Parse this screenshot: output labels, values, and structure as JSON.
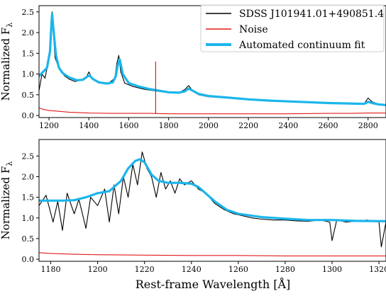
{
  "figure": {
    "xlabel": "Rest-frame Wavelength [Å]"
  },
  "legend": {
    "position": "top-right",
    "entries": [
      {
        "label": "SDSS J101941.01+490851.4",
        "color": "#000000"
      },
      {
        "label": "Noise",
        "color": "#e31a1c"
      },
      {
        "label": "Automated continuum fit",
        "color": "#1bb5ec"
      }
    ]
  },
  "colors": {
    "spectrum": "#000000",
    "noise": "#e31a1c",
    "fit": "#1bb5ec"
  },
  "chart_data": [
    {
      "type": "line",
      "ylabel": "Normalized F",
      "ylabel_subscript": "λ",
      "xlim": [
        1150,
        2890
      ],
      "ylim": [
        -0.05,
        2.65
      ],
      "xticks": [
        1200,
        1400,
        1600,
        1800,
        2000,
        2200,
        2400,
        2600,
        2800
      ],
      "yticks": [
        0.0,
        0.5,
        1.0,
        1.5,
        2.0,
        2.5
      ],
      "ytick_labels": [
        "0.0",
        "0.5",
        "1.0",
        "1.5",
        "2.0",
        "2.5"
      ],
      "series": [
        {
          "name": "SDSS J101941.01+490851.4",
          "x": [
            1150,
            1165,
            1180,
            1195,
            1205,
            1212,
            1216,
            1222,
            1230,
            1245,
            1260,
            1280,
            1300,
            1330,
            1360,
            1390,
            1400,
            1410,
            1430,
            1460,
            1500,
            1530,
            1540,
            1550,
            1560,
            1580,
            1620,
            1680,
            1750,
            1800,
            1850,
            1880,
            1900,
            1920,
            1950,
            2000,
            2100,
            2200,
            2300,
            2400,
            2500,
            2600,
            2700,
            2780,
            2800,
            2820,
            2850,
            2890
          ],
          "y": [
            0.6,
            1.0,
            0.9,
            1.25,
            1.55,
            2.2,
            2.5,
            2.0,
            1.4,
            1.2,
            1.05,
            0.95,
            0.88,
            0.82,
            0.85,
            0.95,
            1.05,
            0.95,
            0.85,
            0.8,
            0.78,
            0.9,
            1.25,
            1.45,
            1.05,
            0.78,
            0.7,
            0.63,
            0.58,
            0.55,
            0.55,
            0.62,
            0.72,
            0.6,
            0.5,
            0.45,
            0.42,
            0.38,
            0.36,
            0.34,
            0.32,
            0.3,
            0.3,
            0.28,
            0.42,
            0.33,
            0.28,
            0.26
          ]
        },
        {
          "name": "Noise",
          "x": [
            1150,
            1170,
            1200,
            1250,
            1300,
            1400,
            1500,
            1600,
            1700,
            1800,
            1900,
            2000,
            2200,
            2400,
            2600,
            2700,
            2800,
            2890
          ],
          "y": [
            0.18,
            0.15,
            0.12,
            0.1,
            0.08,
            0.06,
            0.05,
            0.05,
            0.05,
            0.04,
            0.04,
            0.04,
            0.04,
            0.04,
            0.05,
            0.05,
            0.06,
            0.06
          ]
        },
        {
          "name": "Automated continuum fit",
          "x": [
            1150,
            1170,
            1190,
            1205,
            1212,
            1216,
            1222,
            1235,
            1250,
            1270,
            1300,
            1340,
            1370,
            1395,
            1405,
            1420,
            1450,
            1490,
            1520,
            1535,
            1545,
            1555,
            1570,
            1600,
            1650,
            1700,
            1750,
            1800,
            1850,
            1880,
            1900,
            1920,
            1950,
            2000,
            2100,
            2200,
            2300,
            2400,
            2500,
            2600,
            2700,
            2780,
            2800,
            2820,
            2850,
            2890
          ],
          "y": [
            0.95,
            1.05,
            1.15,
            1.55,
            2.2,
            2.45,
            2.1,
            1.45,
            1.15,
            1.02,
            0.92,
            0.85,
            0.86,
            0.95,
            0.96,
            0.88,
            0.8,
            0.77,
            0.8,
            0.95,
            1.22,
            1.35,
            1.0,
            0.78,
            0.7,
            0.64,
            0.6,
            0.56,
            0.55,
            0.58,
            0.65,
            0.6,
            0.52,
            0.47,
            0.43,
            0.39,
            0.36,
            0.34,
            0.32,
            0.3,
            0.29,
            0.28,
            0.33,
            0.3,
            0.27,
            0.25
          ]
        }
      ],
      "annotations": [
        {
          "type": "spike",
          "series": "Noise",
          "x": 1735,
          "y": 1.3
        }
      ]
    },
    {
      "type": "line",
      "ylabel": "Normalized F",
      "ylabel_subscript": "λ",
      "xlim": [
        1175,
        1323
      ],
      "ylim": [
        -0.05,
        2.9
      ],
      "xticks": [
        1180,
        1200,
        1220,
        1240,
        1260,
        1280,
        1300,
        1320
      ],
      "yticks": [
        0.0,
        0.5,
        1.0,
        1.5,
        2.0,
        2.5
      ],
      "ytick_labels": [
        "0.0",
        "0.5",
        "1.0",
        "1.5",
        "2.0",
        "2.5"
      ],
      "series": [
        {
          "name": "SDSS J101941.01+490851.4",
          "x": [
            1175,
            1178,
            1181,
            1183,
            1185,
            1187,
            1190,
            1192,
            1195,
            1197,
            1200,
            1203,
            1205,
            1207,
            1209,
            1211,
            1213,
            1215,
            1217,
            1219,
            1221,
            1223,
            1225,
            1227,
            1229,
            1231,
            1233,
            1235,
            1237,
            1240,
            1243,
            1246,
            1250,
            1254,
            1258,
            1262,
            1266,
            1270,
            1275,
            1280,
            1285,
            1290,
            1295,
            1299,
            1300,
            1302,
            1306,
            1310,
            1315,
            1320,
            1321,
            1323
          ],
          "y": [
            1.3,
            1.55,
            0.9,
            1.4,
            0.7,
            1.6,
            1.1,
            1.45,
            0.75,
            1.5,
            1.3,
            1.7,
            0.9,
            1.8,
            1.1,
            2.0,
            1.5,
            2.3,
            1.8,
            2.6,
            2.2,
            2.0,
            1.5,
            2.1,
            1.7,
            1.9,
            1.6,
            1.95,
            1.8,
            1.9,
            1.7,
            1.6,
            1.35,
            1.2,
            1.1,
            1.05,
            1.0,
            0.97,
            0.95,
            0.95,
            0.93,
            0.92,
            0.95,
            0.9,
            0.45,
            0.95,
            0.9,
            0.92,
            0.95,
            0.9,
            0.3,
            0.9
          ]
        },
        {
          "name": "Noise",
          "x": [
            1175,
            1180,
            1190,
            1200,
            1220,
            1240,
            1260,
            1280,
            1300,
            1323
          ],
          "y": [
            0.16,
            0.14,
            0.12,
            0.11,
            0.1,
            0.09,
            0.09,
            0.08,
            0.08,
            0.08
          ]
        },
        {
          "name": "Automated continuum fit",
          "x": [
            1175,
            1180,
            1185,
            1190,
            1195,
            1200,
            1205,
            1210,
            1213,
            1216,
            1218,
            1220,
            1223,
            1226,
            1230,
            1235,
            1240,
            1243,
            1246,
            1250,
            1255,
            1260,
            1270,
            1280,
            1290,
            1300,
            1310,
            1323
          ],
          "y": [
            1.42,
            1.42,
            1.42,
            1.43,
            1.5,
            1.6,
            1.65,
            1.9,
            2.2,
            2.38,
            2.42,
            2.35,
            2.05,
            1.9,
            1.85,
            1.85,
            1.83,
            1.75,
            1.6,
            1.4,
            1.2,
            1.1,
            1.02,
            0.98,
            0.95,
            0.95,
            0.93,
            0.92
          ]
        }
      ]
    }
  ]
}
